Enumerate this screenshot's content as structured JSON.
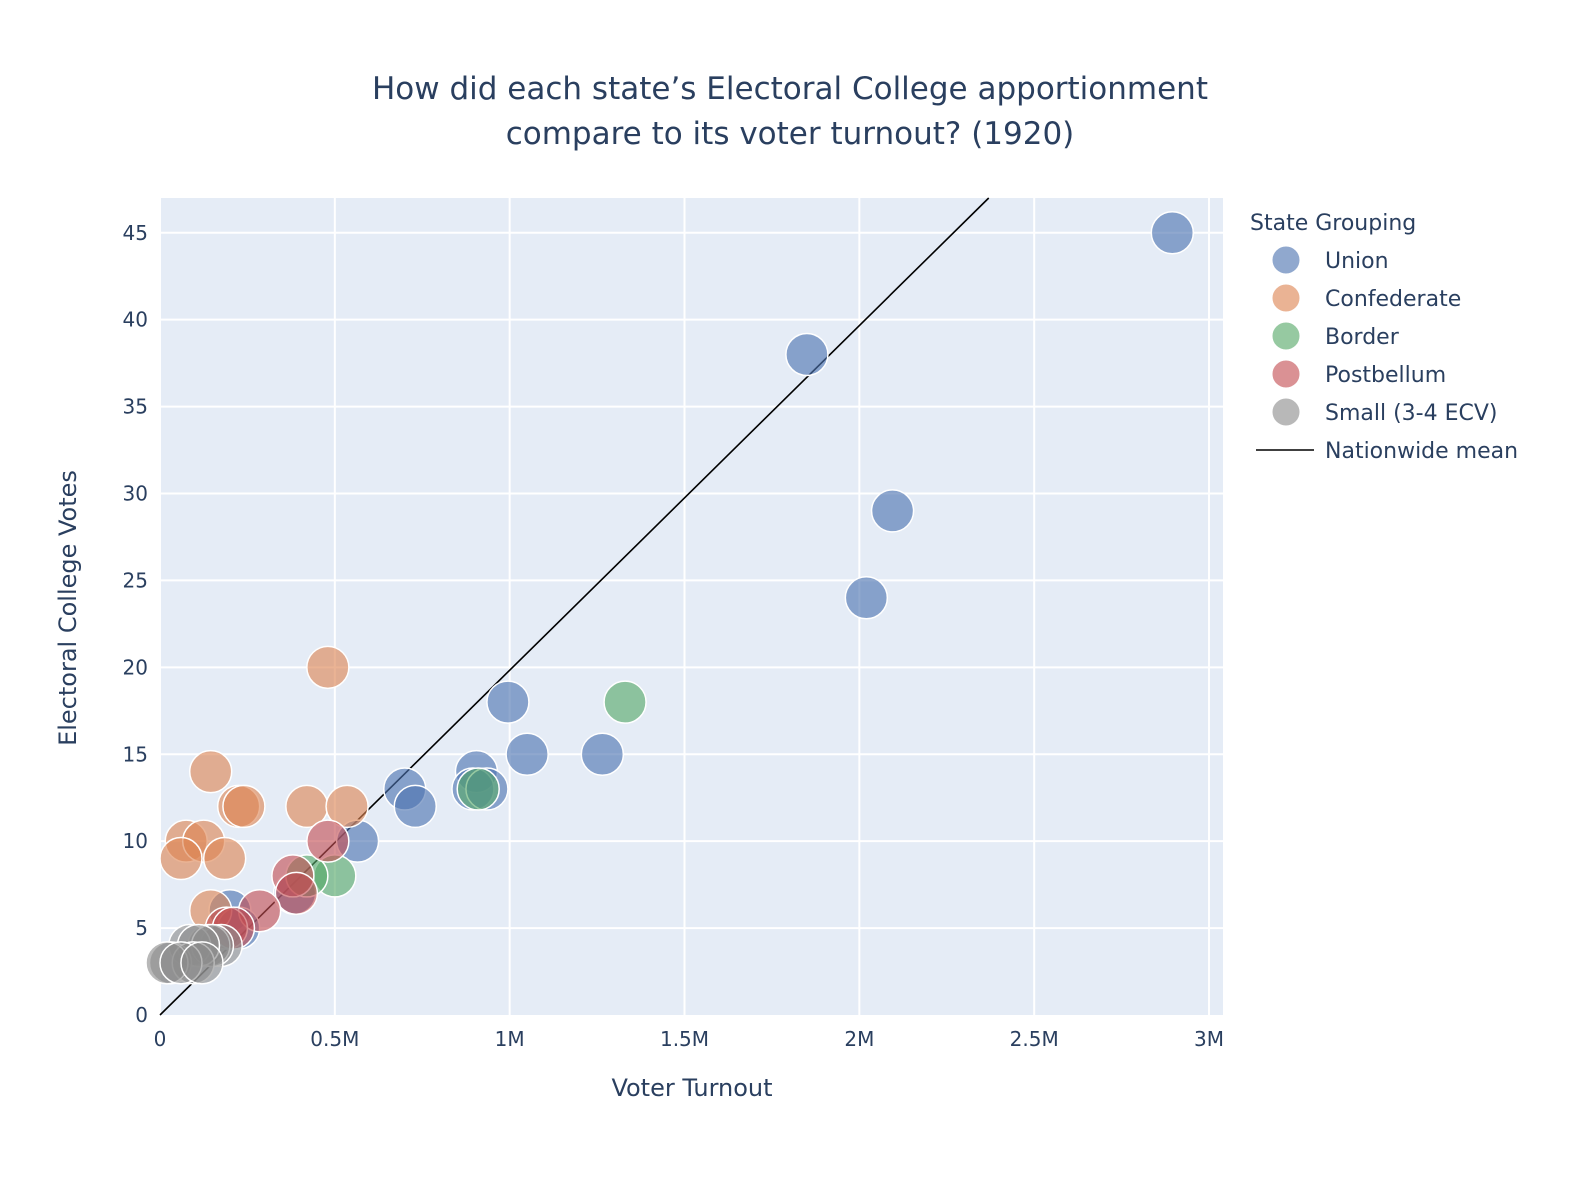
{
  "chart_data": {
    "type": "scatter",
    "title_lines": [
      "How did each state’s Electoral College apportionment",
      "compare to its voter turnout? (1920)"
    ],
    "xlabel": "Voter Turnout",
    "ylabel": "Electoral College Votes",
    "xlim": [
      0,
      3040000
    ],
    "ylim": [
      0,
      47
    ],
    "x_ticks": [
      {
        "value": 0,
        "label": "0"
      },
      {
        "value": 500000,
        "label": "0.5M"
      },
      {
        "value": 1000000,
        "label": "1M"
      },
      {
        "value": 1500000,
        "label": "1.5M"
      },
      {
        "value": 2000000,
        "label": "2M"
      },
      {
        "value": 2500000,
        "label": "2.5M"
      },
      {
        "value": 3000000,
        "label": "3M"
      }
    ],
    "y_ticks": [
      {
        "value": 0,
        "label": "0"
      },
      {
        "value": 5,
        "label": "5"
      },
      {
        "value": 10,
        "label": "10"
      },
      {
        "value": 15,
        "label": "15"
      },
      {
        "value": 20,
        "label": "20"
      },
      {
        "value": 25,
        "label": "25"
      },
      {
        "value": 30,
        "label": "30"
      },
      {
        "value": 35,
        "label": "35"
      },
      {
        "value": 40,
        "label": "40"
      },
      {
        "value": 45,
        "label": "45"
      }
    ],
    "grid": true,
    "legend_title": "State Grouping",
    "legend_position": "right",
    "series": [
      {
        "name": "Union",
        "color": "#4c72b0",
        "points": [
          {
            "x": 2895000,
            "y": 45
          },
          {
            "x": 1850000,
            "y": 38
          },
          {
            "x": 2095000,
            "y": 29
          },
          {
            "x": 2020000,
            "y": 24
          },
          {
            "x": 995000,
            "y": 18
          },
          {
            "x": 1050000,
            "y": 15
          },
          {
            "x": 1265000,
            "y": 15
          },
          {
            "x": 905000,
            "y": 14
          },
          {
            "x": 700000,
            "y": 13
          },
          {
            "x": 895000,
            "y": 13
          },
          {
            "x": 935000,
            "y": 13
          },
          {
            "x": 730000,
            "y": 12
          },
          {
            "x": 565000,
            "y": 10
          },
          {
            "x": 385000,
            "y": 7
          },
          {
            "x": 200000,
            "y": 6
          },
          {
            "x": 225000,
            "y": 5
          }
        ]
      },
      {
        "name": "Confederate",
        "color": "#dd8452",
        "points": [
          {
            "x": 480000,
            "y": 20
          },
          {
            "x": 145000,
            "y": 14
          },
          {
            "x": 225000,
            "y": 12
          },
          {
            "x": 240000,
            "y": 12
          },
          {
            "x": 420000,
            "y": 12
          },
          {
            "x": 535000,
            "y": 12
          },
          {
            "x": 75000,
            "y": 10
          },
          {
            "x": 125000,
            "y": 10
          },
          {
            "x": 60000,
            "y": 9
          },
          {
            "x": 185000,
            "y": 9
          },
          {
            "x": 145000,
            "y": 6
          }
        ]
      },
      {
        "name": "Border",
        "color": "#55a868",
        "points": [
          {
            "x": 1330000,
            "y": 18
          },
          {
            "x": 910000,
            "y": 13
          },
          {
            "x": 500000,
            "y": 8
          },
          {
            "x": 420000,
            "y": 8
          }
        ]
      },
      {
        "name": "Postbellum",
        "color": "#c44e52",
        "points": [
          {
            "x": 480000,
            "y": 10
          },
          {
            "x": 380000,
            "y": 8
          },
          {
            "x": 390000,
            "y": 7
          },
          {
            "x": 285000,
            "y": 6
          },
          {
            "x": 190000,
            "y": 5
          },
          {
            "x": 210000,
            "y": 5
          }
        ]
      },
      {
        "name": "Small (3-4 ECV)",
        "color": "#8c8c8c",
        "points": [
          {
            "x": 175000,
            "y": 4
          },
          {
            "x": 140000,
            "y": 4
          },
          {
            "x": 85000,
            "y": 4
          },
          {
            "x": 150000,
            "y": 4
          },
          {
            "x": 110000,
            "y": 4
          },
          {
            "x": 30000,
            "y": 3
          },
          {
            "x": 95000,
            "y": 3
          },
          {
            "x": 20000,
            "y": 3
          },
          {
            "x": 60000,
            "y": 3
          },
          {
            "x": 120000,
            "y": 3
          }
        ]
      }
    ],
    "line": {
      "name": "Nationwide mean",
      "color": "#000000",
      "from": {
        "x": 0,
        "y": 0
      },
      "to": {
        "x": 2370000,
        "y": 47
      }
    }
  }
}
